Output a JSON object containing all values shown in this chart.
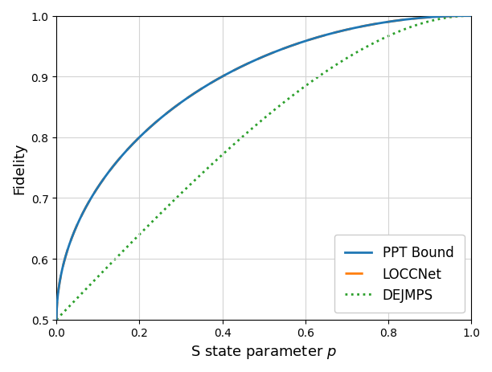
{
  "title": "",
  "xlabel": "S state parameter $p$",
  "ylabel": "Fidelity",
  "xlim": [
    0.0,
    1.0
  ],
  "ylim": [
    0.5,
    1.0
  ],
  "xticks": [
    0.0,
    0.2,
    0.4,
    0.6,
    0.8,
    1.0
  ],
  "yticks": [
    0.5,
    0.6,
    0.7,
    0.8,
    0.9,
    1.0
  ],
  "ppt_color": "#1f77b4",
  "loccnet_color": "#ff7f0e",
  "dejmps_color": "#2ca02c",
  "legend_labels": [
    "PPT Bound",
    "LOCCNet",
    "DEJMPS"
  ],
  "legend_loc": "lower right",
  "grid": true,
  "figsize": [
    6.12,
    4.64
  ],
  "dpi": 100
}
